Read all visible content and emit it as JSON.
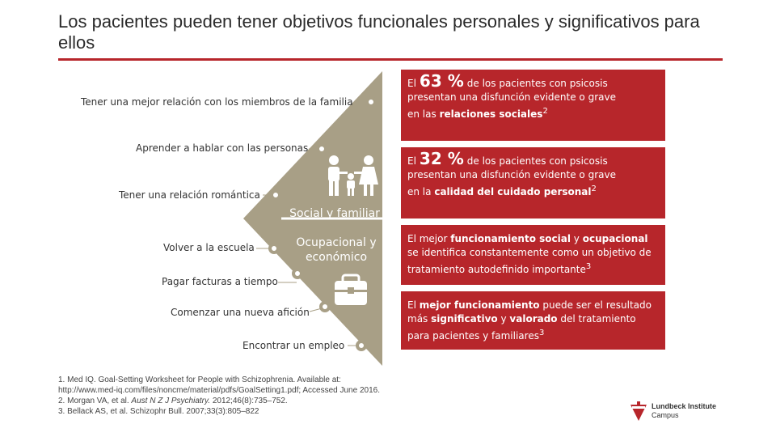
{
  "title": "Los pacientes pueden tener objetivos funcionales personales y significativos para ellos",
  "goals": [
    "Tener una mejor relación con los miembros de la familia",
    "Aprender a hablar con las personas",
    "Tener una relación romántica",
    "Volver a la escuela",
    "Pagar facturas a tiempo",
    "Comenzar una nueva afición",
    "Encontrar un empleo"
  ],
  "segments": {
    "social": "Social y familiar",
    "occupational": "Ocupacional y económico"
  },
  "boxes": {
    "b1": {
      "pre": "El",
      "stat": "63 %",
      "post": "de los pacientes con psicosis",
      "line2": "presentan una disfunción evidente o grave",
      "line3_pre": "en las",
      "line3_bold": "relaciones sociales",
      "sup": "2"
    },
    "b2": {
      "pre": "El",
      "stat": "32 %",
      "post": "de los pacientes con psicosis",
      "line2": "presentan una disfunción evidente o grave",
      "line3_pre": "en la",
      "line3_bold": "calidad del cuidado personal",
      "sup": "2"
    },
    "b3": {
      "t1": "El mejor",
      "b1": "funcionamiento social",
      "t2": "y",
      "b2": "ocupacional",
      "t3": "se identifica constantemente como un objetivo de tratamiento autodefinido importante",
      "sup": "3"
    },
    "b4": {
      "t1": "El",
      "b1": "mejor funcionamiento",
      "t2": "puede ser el resultado más",
      "b2": "significativo",
      "t3": "y",
      "b3": "valorado",
      "t4": "del tratamiento para pacientes y familiares",
      "sup": "3"
    }
  },
  "references": {
    "r1a": "1. Med IQ. Goal-Setting Worksheet for People with Schizophrenia. Available at:",
    "r1b": "http://www.med-iq.com/files/noncme/material/pdfs/GoalSetting1.pdf; Accessed June 2016.",
    "r2_pre": "2. Morgan VA, et al.",
    "r2_journal": "Aust N Z J Psychiatry.",
    "r2_post": "2012;46(8):735–752.",
    "r3": "3. Bellack AS, et al. Schizophr Bull. 2007;33(3):805–822"
  },
  "logo": {
    "line1": "Lundbeck Institute",
    "line2": "Campus"
  },
  "colors": {
    "accent": "#b7262b",
    "diamond": "#a89f86"
  }
}
